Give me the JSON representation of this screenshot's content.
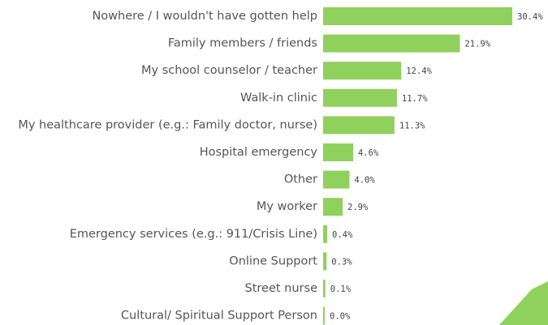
{
  "chart_data": {
    "type": "bar",
    "categories": [
      "Nowhere / I wouldn't have gotten help",
      "Family members / friends",
      "My school counselor / teacher",
      "Walk-in clinic",
      "My healthcare provider (e.g.: Family doctor, nurse)",
      "Hospital emergency",
      "Other",
      "My worker",
      "Emergency services (e.g.: 911/Crisis Line)",
      "Online Support",
      "Street nurse",
      "Cultural/ Spiritual Support Person"
    ],
    "values": [
      30.4,
      21.9,
      12.4,
      11.7,
      11.3,
      4.6,
      4.0,
      2.9,
      0.4,
      0.3,
      0.1,
      0.0
    ],
    "value_labels": [
      "30.4%",
      "21.9%",
      "12.4%",
      "11.7%",
      "11.3%",
      "4.6%",
      "4.0%",
      "2.9%",
      "0.4%",
      "0.3%",
      "0.1%",
      "0.0%"
    ],
    "color": "#8fd15c"
  }
}
